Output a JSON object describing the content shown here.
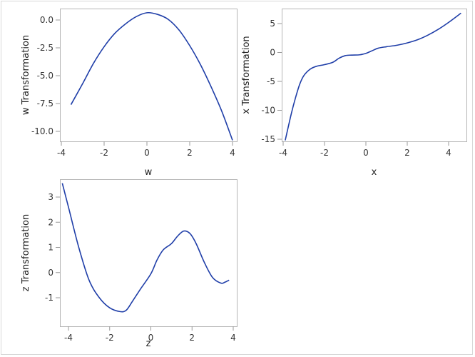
{
  "chart_data": [
    {
      "type": "line",
      "panel": "top-left",
      "title": "",
      "xlabel": "w",
      "ylabel": "w Transformation",
      "xlim": [
        -4,
        4
      ],
      "ylim": [
        -10.8,
        0.9
      ],
      "xticks": [
        -4,
        -2,
        0,
        2,
        4
      ],
      "yticks": [
        0.0,
        -2.5,
        -5.0,
        -7.5,
        -10.0
      ],
      "xtick_labels": [
        "-4",
        "-2",
        "0",
        "2",
        "4"
      ],
      "ytick_labels": [
        "0.0",
        "-2.5",
        "-5.0",
        "-7.5",
        "-10.0"
      ],
      "grid": false,
      "series": [
        {
          "name": "w Transformation",
          "color": "#1f3ea8",
          "x": [
            -3.55,
            -3.0,
            -2.5,
            -2.0,
            -1.5,
            -1.0,
            -0.5,
            0.0,
            0.5,
            1.0,
            1.5,
            2.0,
            2.5,
            3.0,
            3.5,
            4.0
          ],
          "y": [
            -7.6,
            -5.7,
            -3.9,
            -2.4,
            -1.2,
            -0.35,
            0.3,
            0.65,
            0.5,
            0.05,
            -0.9,
            -2.3,
            -4.0,
            -6.0,
            -8.2,
            -10.8
          ]
        }
      ]
    },
    {
      "type": "line",
      "panel": "top-right",
      "title": "",
      "xlabel": "x",
      "ylabel": "x Transformation",
      "xlim": [
        -4,
        4.7
      ],
      "ylim": [
        -15.5,
        7.5
      ],
      "xticks": [
        -4,
        -2,
        0,
        2,
        4
      ],
      "yticks": [
        5,
        0,
        -5,
        -10,
        -15
      ],
      "xtick_labels": [
        "-4",
        "-2",
        "0",
        "2",
        "4"
      ],
      "ytick_labels": [
        "5",
        "0",
        "-5",
        "-10",
        "-15"
      ],
      "grid": false,
      "series": [
        {
          "name": "x Transformation",
          "color": "#1f3ea8",
          "x": [
            -3.9,
            -3.6,
            -3.4,
            -3.2,
            -3.0,
            -2.7,
            -2.4,
            -2.0,
            -1.6,
            -1.3,
            -1.0,
            -0.7,
            -0.3,
            0.0,
            0.3,
            0.6,
            1.0,
            1.5,
            2.0,
            2.5,
            3.0,
            3.5,
            4.0,
            4.6
          ],
          "y": [
            -15.2,
            -10.5,
            -7.8,
            -5.5,
            -4.0,
            -2.9,
            -2.4,
            -2.1,
            -1.7,
            -1.0,
            -0.55,
            -0.45,
            -0.4,
            -0.15,
            0.3,
            0.75,
            1.0,
            1.25,
            1.65,
            2.2,
            3.0,
            4.0,
            5.2,
            6.8
          ]
        }
      ]
    },
    {
      "type": "line",
      "panel": "bottom-left",
      "title": "",
      "xlabel": "z",
      "ylabel": "z Transformation",
      "xlim": [
        -4.35,
        4.1
      ],
      "ylim": [
        -1.55,
        3.7
      ],
      "xticks": [
        -4,
        -2,
        0,
        2,
        4
      ],
      "yticks": [
        3,
        2,
        1,
        0,
        -1
      ],
      "xtick_labels": [
        "-4",
        "-2",
        "0",
        "2",
        "4"
      ],
      "ytick_labels": [
        "3",
        "2",
        "1",
        "0",
        "-1"
      ],
      "grid": false,
      "series": [
        {
          "name": "z Transformation",
          "color": "#1f3ea8",
          "x": [
            -4.3,
            -4.0,
            -3.5,
            -3.0,
            -2.5,
            -2.0,
            -1.5,
            -1.2,
            -0.9,
            -0.5,
            0.0,
            0.3,
            0.6,
            1.0,
            1.3,
            1.6,
            1.9,
            2.2,
            2.6,
            3.0,
            3.4,
            3.6,
            3.8
          ],
          "y": [
            3.55,
            2.6,
            1.0,
            -0.3,
            -1.0,
            -1.4,
            -1.55,
            -1.5,
            -1.15,
            -0.65,
            -0.05,
            0.5,
            0.9,
            1.15,
            1.45,
            1.65,
            1.55,
            1.15,
            0.4,
            -0.2,
            -0.42,
            -0.38,
            -0.3
          ]
        }
      ]
    }
  ]
}
